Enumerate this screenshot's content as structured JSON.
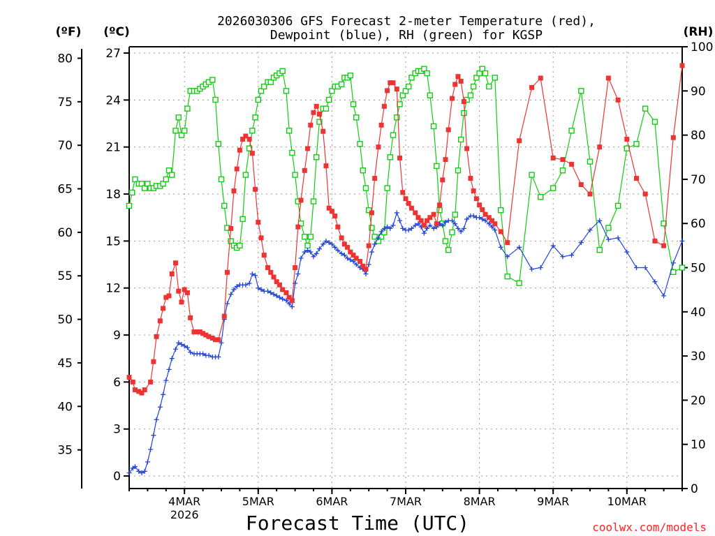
{
  "chart_data": {
    "type": "line",
    "title_line1": "2026030306 GFS Forecast 2-meter Temperature (red),",
    "title_line2": "Dewpoint (blue), RH (green) for KGSP",
    "xlabel": "Forecast Time (UTC)",
    "credit": "coolwx.com/models",
    "units": {
      "fahrenheit": "(ºF)",
      "celsius": "(ºC)",
      "rh": "(RH)"
    },
    "colors": {
      "temperature": "#ee3333",
      "dewpoint": "#2244dd",
      "rh": "#11cc11"
    },
    "xlim": [
      -0.75,
      6.75
    ],
    "ylim_c": [
      -0.8,
      27.4
    ],
    "ylim_rh": [
      0,
      100
    ],
    "y_ticks_c": [
      0,
      3,
      6,
      9,
      12,
      15,
      18,
      21,
      24,
      27
    ],
    "y_ticks_f": [
      35,
      40,
      45,
      50,
      55,
      60,
      65,
      70,
      75,
      80
    ],
    "y_ticks_rh": [
      0,
      10,
      20,
      30,
      40,
      50,
      60,
      70,
      80,
      90,
      100
    ],
    "x_ticks": [
      {
        "label": "4MAR",
        "sub": "2026",
        "x": 0
      },
      {
        "label": "5MAR",
        "sub": "",
        "x": 1
      },
      {
        "label": "6MAR",
        "sub": "",
        "x": 2
      },
      {
        "label": "7MAR",
        "sub": "",
        "x": 3
      },
      {
        "label": "8MAR",
        "sub": "",
        "x": 4
      },
      {
        "label": "9MAR",
        "sub": "",
        "x": 5
      },
      {
        "label": "10MAR",
        "sub": "",
        "x": 6
      }
    ],
    "temperature_c": [
      [
        -0.75,
        6.3
      ],
      [
        -0.7,
        6.0
      ],
      [
        -0.67,
        5.5
      ],
      [
        -0.62,
        5.4
      ],
      [
        -0.58,
        5.3
      ],
      [
        -0.54,
        5.5
      ],
      [
        -0.46,
        6.0
      ],
      [
        -0.42,
        7.3
      ],
      [
        -0.38,
        8.9
      ],
      [
        -0.33,
        9.9
      ],
      [
        -0.29,
        10.7
      ],
      [
        -0.25,
        11.4
      ],
      [
        -0.21,
        11.5
      ],
      [
        -0.17,
        12.9
      ],
      [
        -0.12,
        13.6
      ],
      [
        -0.08,
        11.8
      ],
      [
        -0.04,
        11.1
      ],
      [
        0.0,
        11.9
      ],
      [
        0.04,
        11.7
      ],
      [
        0.08,
        10.1
      ],
      [
        0.13,
        9.2
      ],
      [
        0.17,
        9.2
      ],
      [
        0.21,
        9.2
      ],
      [
        0.25,
        9.1
      ],
      [
        0.29,
        9.0
      ],
      [
        0.33,
        8.9
      ],
      [
        0.38,
        8.8
      ],
      [
        0.42,
        8.7
      ],
      [
        0.46,
        8.7
      ],
      [
        0.54,
        10.2
      ],
      [
        0.58,
        13.0
      ],
      [
        0.63,
        15.8
      ],
      [
        0.67,
        18.2
      ],
      [
        0.71,
        19.6
      ],
      [
        0.75,
        20.8
      ],
      [
        0.79,
        21.5
      ],
      [
        0.83,
        21.7
      ],
      [
        0.88,
        21.5
      ],
      [
        0.92,
        20.6
      ],
      [
        0.96,
        18.3
      ],
      [
        1.0,
        16.2
      ],
      [
        1.04,
        15.2
      ],
      [
        1.08,
        14.1
      ],
      [
        1.13,
        13.3
      ],
      [
        1.17,
        13.0
      ],
      [
        1.21,
        12.7
      ],
      [
        1.25,
        12.4
      ],
      [
        1.29,
        12.2
      ],
      [
        1.33,
        11.9
      ],
      [
        1.38,
        11.7
      ],
      [
        1.42,
        11.4
      ],
      [
        1.46,
        11.2
      ],
      [
        1.5,
        13.3
      ],
      [
        1.54,
        15.9
      ],
      [
        1.58,
        17.6
      ],
      [
        1.63,
        19.5
      ],
      [
        1.67,
        20.9
      ],
      [
        1.71,
        22.4
      ],
      [
        1.75,
        23.2
      ],
      [
        1.79,
        23.6
      ],
      [
        1.83,
        23.1
      ],
      [
        1.88,
        22.0
      ],
      [
        1.92,
        19.8
      ],
      [
        1.96,
        17.1
      ],
      [
        2.0,
        16.9
      ],
      [
        2.04,
        16.6
      ],
      [
        2.08,
        15.9
      ],
      [
        2.13,
        15.2
      ],
      [
        2.17,
        14.8
      ],
      [
        2.21,
        14.6
      ],
      [
        2.25,
        14.3
      ],
      [
        2.29,
        14.1
      ],
      [
        2.33,
        13.9
      ],
      [
        2.38,
        13.7
      ],
      [
        2.42,
        13.4
      ],
      [
        2.46,
        13.2
      ],
      [
        2.5,
        14.7
      ],
      [
        2.54,
        16.8
      ],
      [
        2.58,
        19.0
      ],
      [
        2.63,
        21.0
      ],
      [
        2.67,
        22.4
      ],
      [
        2.71,
        23.6
      ],
      [
        2.75,
        24.6
      ],
      [
        2.79,
        25.1
      ],
      [
        2.83,
        25.1
      ],
      [
        2.88,
        24.7
      ],
      [
        2.92,
        20.3
      ],
      [
        2.96,
        18.1
      ],
      [
        3.0,
        17.7
      ],
      [
        3.04,
        17.4
      ],
      [
        3.08,
        17.1
      ],
      [
        3.13,
        16.8
      ],
      [
        3.17,
        16.5
      ],
      [
        3.21,
        16.3
      ],
      [
        3.25,
        16.0
      ],
      [
        3.29,
        16.3
      ],
      [
        3.33,
        16.5
      ],
      [
        3.38,
        16.7
      ],
      [
        3.42,
        16.1
      ],
      [
        3.46,
        17.3
      ],
      [
        3.5,
        18.9
      ],
      [
        3.54,
        20.2
      ],
      [
        3.58,
        22.1
      ],
      [
        3.63,
        24.1
      ],
      [
        3.67,
        25.0
      ],
      [
        3.71,
        25.5
      ],
      [
        3.75,
        25.2
      ],
      [
        3.79,
        23.9
      ],
      [
        3.83,
        20.9
      ],
      [
        3.88,
        19.0
      ],
      [
        3.92,
        18.2
      ],
      [
        3.96,
        17.7
      ],
      [
        4.0,
        17.3
      ],
      [
        4.04,
        17.0
      ],
      [
        4.08,
        16.7
      ],
      [
        4.13,
        16.5
      ],
      [
        4.17,
        16.3
      ],
      [
        4.21,
        16.1
      ],
      [
        4.29,
        15.6
      ],
      [
        4.38,
        14.9
      ],
      [
        4.54,
        21.4
      ],
      [
        4.71,
        24.8
      ],
      [
        4.83,
        25.4
      ],
      [
        5.0,
        20.3
      ],
      [
        5.13,
        20.2
      ],
      [
        5.25,
        19.9
      ],
      [
        5.38,
        18.6
      ],
      [
        5.5,
        18.0
      ],
      [
        5.63,
        21.0
      ],
      [
        5.75,
        25.4
      ],
      [
        5.88,
        24.0
      ],
      [
        6.0,
        21.5
      ],
      [
        6.13,
        19.0
      ],
      [
        6.25,
        18.0
      ],
      [
        6.38,
        15.0
      ],
      [
        6.5,
        14.7
      ],
      [
        6.63,
        21.6
      ],
      [
        6.75,
        26.2
      ]
    ],
    "dewpoint_c": [
      [
        -0.75,
        0.2
      ],
      [
        -0.7,
        0.5
      ],
      [
        -0.67,
        0.6
      ],
      [
        -0.62,
        0.3
      ],
      [
        -0.58,
        0.2
      ],
      [
        -0.54,
        0.3
      ],
      [
        -0.5,
        0.9
      ],
      [
        -0.46,
        1.7
      ],
      [
        -0.42,
        2.6
      ],
      [
        -0.38,
        3.6
      ],
      [
        -0.33,
        4.4
      ],
      [
        -0.29,
        5.2
      ],
      [
        -0.25,
        6.1
      ],
      [
        -0.21,
        6.8
      ],
      [
        -0.17,
        7.5
      ],
      [
        -0.12,
        8.1
      ],
      [
        -0.08,
        8.5
      ],
      [
        -0.04,
        8.4
      ],
      [
        0.0,
        8.3
      ],
      [
        0.04,
        8.2
      ],
      [
        0.08,
        7.9
      ],
      [
        0.13,
        7.8
      ],
      [
        0.17,
        7.8
      ],
      [
        0.21,
        7.8
      ],
      [
        0.25,
        7.8
      ],
      [
        0.29,
        7.7
      ],
      [
        0.33,
        7.7
      ],
      [
        0.38,
        7.6
      ],
      [
        0.42,
        7.6
      ],
      [
        0.46,
        7.6
      ],
      [
        0.5,
        8.5
      ],
      [
        0.54,
        10.0
      ],
      [
        0.58,
        11.0
      ],
      [
        0.63,
        11.6
      ],
      [
        0.67,
        11.9
      ],
      [
        0.71,
        12.1
      ],
      [
        0.75,
        12.2
      ],
      [
        0.79,
        12.2
      ],
      [
        0.83,
        12.2
      ],
      [
        0.88,
        12.3
      ],
      [
        0.92,
        12.9
      ],
      [
        0.96,
        12.8
      ],
      [
        1.0,
        12.0
      ],
      [
        1.04,
        11.9
      ],
      [
        1.08,
        11.8
      ],
      [
        1.13,
        11.8
      ],
      [
        1.17,
        11.7
      ],
      [
        1.21,
        11.6
      ],
      [
        1.25,
        11.5
      ],
      [
        1.29,
        11.4
      ],
      [
        1.33,
        11.3
      ],
      [
        1.38,
        11.2
      ],
      [
        1.42,
        11.0
      ],
      [
        1.46,
        10.8
      ],
      [
        1.5,
        12.3
      ],
      [
        1.54,
        12.9
      ],
      [
        1.58,
        13.9
      ],
      [
        1.63,
        14.3
      ],
      [
        1.67,
        14.4
      ],
      [
        1.71,
        14.3
      ],
      [
        1.75,
        14.0
      ],
      [
        1.79,
        14.2
      ],
      [
        1.83,
        14.5
      ],
      [
        1.88,
        14.8
      ],
      [
        1.92,
        15.0
      ],
      [
        1.96,
        14.9
      ],
      [
        2.0,
        14.8
      ],
      [
        2.04,
        14.6
      ],
      [
        2.08,
        14.4
      ],
      [
        2.13,
        14.2
      ],
      [
        2.17,
        14.1
      ],
      [
        2.21,
        13.9
      ],
      [
        2.25,
        13.8
      ],
      [
        2.29,
        13.7
      ],
      [
        2.33,
        13.5
      ],
      [
        2.38,
        13.3
      ],
      [
        2.42,
        13.2
      ],
      [
        2.46,
        12.9
      ],
      [
        2.5,
        13.5
      ],
      [
        2.54,
        14.3
      ],
      [
        2.58,
        14.8
      ],
      [
        2.63,
        15.2
      ],
      [
        2.67,
        15.6
      ],
      [
        2.71,
        15.8
      ],
      [
        2.75,
        15.9
      ],
      [
        2.79,
        15.8
      ],
      [
        2.83,
        16.0
      ],
      [
        2.88,
        16.8
      ],
      [
        2.92,
        16.3
      ],
      [
        2.96,
        15.8
      ],
      [
        3.0,
        15.7
      ],
      [
        3.04,
        15.7
      ],
      [
        3.08,
        15.8
      ],
      [
        3.13,
        16.0
      ],
      [
        3.17,
        16.1
      ],
      [
        3.21,
        15.9
      ],
      [
        3.25,
        15.5
      ],
      [
        3.29,
        15.8
      ],
      [
        3.33,
        16.0
      ],
      [
        3.38,
        15.8
      ],
      [
        3.42,
        15.9
      ],
      [
        3.46,
        16.1
      ],
      [
        3.5,
        16.0
      ],
      [
        3.54,
        16.2
      ],
      [
        3.58,
        16.3
      ],
      [
        3.63,
        16.3
      ],
      [
        3.67,
        16.1
      ],
      [
        3.71,
        15.8
      ],
      [
        3.75,
        15.6
      ],
      [
        3.79,
        15.8
      ],
      [
        3.83,
        16.4
      ],
      [
        3.88,
        16.6
      ],
      [
        3.92,
        16.6
      ],
      [
        3.96,
        16.5
      ],
      [
        4.0,
        16.5
      ],
      [
        4.04,
        16.4
      ],
      [
        4.08,
        16.3
      ],
      [
        4.13,
        16.1
      ],
      [
        4.17,
        15.9
      ],
      [
        4.21,
        15.7
      ],
      [
        4.29,
        14.6
      ],
      [
        4.38,
        14.0
      ],
      [
        4.54,
        14.6
      ],
      [
        4.71,
        13.2
      ],
      [
        4.83,
        13.3
      ],
      [
        5.0,
        14.7
      ],
      [
        5.13,
        14.0
      ],
      [
        5.25,
        14.1
      ],
      [
        5.38,
        14.9
      ],
      [
        5.5,
        15.7
      ],
      [
        5.63,
        16.3
      ],
      [
        5.75,
        15.1
      ],
      [
        5.88,
        15.2
      ],
      [
        6.0,
        14.3
      ],
      [
        6.13,
        13.3
      ],
      [
        6.25,
        13.3
      ],
      [
        6.38,
        12.4
      ],
      [
        6.5,
        11.5
      ],
      [
        6.63,
        13.6
      ],
      [
        6.75,
        15.0
      ]
    ],
    "rh_pct": [
      [
        -0.75,
        64
      ],
      [
        -0.71,
        67
      ],
      [
        -0.67,
        70
      ],
      [
        -0.62,
        69
      ],
      [
        -0.58,
        69
      ],
      [
        -0.54,
        68
      ],
      [
        -0.5,
        69
      ],
      [
        -0.46,
        68
      ],
      [
        -0.42,
        68
      ],
      [
        -0.38,
        68.5
      ],
      [
        -0.33,
        68.5
      ],
      [
        -0.29,
        69
      ],
      [
        -0.25,
        70
      ],
      [
        -0.21,
        72
      ],
      [
        -0.17,
        71
      ],
      [
        -0.12,
        81
      ],
      [
        -0.08,
        84
      ],
      [
        -0.04,
        80
      ],
      [
        0.0,
        81
      ],
      [
        0.04,
        86
      ],
      [
        0.08,
        90
      ],
      [
        0.13,
        90
      ],
      [
        0.17,
        90
      ],
      [
        0.21,
        90.5
      ],
      [
        0.25,
        91
      ],
      [
        0.29,
        91.5
      ],
      [
        0.33,
        92
      ],
      [
        0.38,
        92.5
      ],
      [
        0.42,
        88
      ],
      [
        0.46,
        78
      ],
      [
        0.5,
        70
      ],
      [
        0.54,
        64
      ],
      [
        0.58,
        59
      ],
      [
        0.63,
        56
      ],
      [
        0.67,
        55
      ],
      [
        0.71,
        54.5
      ],
      [
        0.75,
        55
      ],
      [
        0.79,
        61
      ],
      [
        0.83,
        71
      ],
      [
        0.88,
        77
      ],
      [
        0.92,
        81
      ],
      [
        0.96,
        84
      ],
      [
        1.0,
        88
      ],
      [
        1.04,
        90
      ],
      [
        1.08,
        91
      ],
      [
        1.13,
        92
      ],
      [
        1.17,
        92
      ],
      [
        1.21,
        93
      ],
      [
        1.25,
        93.5
      ],
      [
        1.29,
        94
      ],
      [
        1.33,
        94.5
      ],
      [
        1.38,
        90
      ],
      [
        1.42,
        81
      ],
      [
        1.46,
        76
      ],
      [
        1.5,
        71
      ],
      [
        1.54,
        65
      ],
      [
        1.58,
        60
      ],
      [
        1.63,
        57
      ],
      [
        1.67,
        55
      ],
      [
        1.71,
        57
      ],
      [
        1.75,
        65
      ],
      [
        1.79,
        75
      ],
      [
        1.83,
        83
      ],
      [
        1.88,
        86
      ],
      [
        1.92,
        86
      ],
      [
        1.96,
        88
      ],
      [
        2.0,
        90
      ],
      [
        2.04,
        91
      ],
      [
        2.08,
        91
      ],
      [
        2.13,
        91.5
      ],
      [
        2.17,
        93
      ],
      [
        2.21,
        93
      ],
      [
        2.25,
        93.5
      ],
      [
        2.29,
        87
      ],
      [
        2.33,
        84
      ],
      [
        2.38,
        78
      ],
      [
        2.42,
        72
      ],
      [
        2.46,
        68
      ],
      [
        2.5,
        63
      ],
      [
        2.54,
        59
      ],
      [
        2.58,
        57
      ],
      [
        2.63,
        56
      ],
      [
        2.67,
        57
      ],
      [
        2.71,
        58
      ],
      [
        2.75,
        68
      ],
      [
        2.79,
        75
      ],
      [
        2.83,
        80
      ],
      [
        2.88,
        84
      ],
      [
        2.92,
        87
      ],
      [
        2.96,
        89
      ],
      [
        3.0,
        90
      ],
      [
        3.04,
        91
      ],
      [
        3.08,
        93
      ],
      [
        3.13,
        94
      ],
      [
        3.17,
        94.5
      ],
      [
        3.21,
        94.5
      ],
      [
        3.25,
        95
      ],
      [
        3.29,
        94
      ],
      [
        3.33,
        89
      ],
      [
        3.38,
        82
      ],
      [
        3.42,
        73
      ],
      [
        3.46,
        63
      ],
      [
        3.5,
        60
      ],
      [
        3.54,
        56
      ],
      [
        3.58,
        54
      ],
      [
        3.63,
        58
      ],
      [
        3.67,
        62
      ],
      [
        3.71,
        72
      ],
      [
        3.75,
        79
      ],
      [
        3.79,
        85
      ],
      [
        3.83,
        88
      ],
      [
        3.88,
        89
      ],
      [
        3.92,
        91
      ],
      [
        3.96,
        93
      ],
      [
        4.0,
        94
      ],
      [
        4.04,
        95
      ],
      [
        4.08,
        94
      ],
      [
        4.13,
        91
      ],
      [
        4.21,
        93
      ],
      [
        4.29,
        63
      ],
      [
        4.38,
        48
      ],
      [
        4.54,
        46.5
      ],
      [
        4.71,
        71
      ],
      [
        4.83,
        66
      ],
      [
        5.0,
        68
      ],
      [
        5.13,
        72
      ],
      [
        5.25,
        81
      ],
      [
        5.38,
        90
      ],
      [
        5.5,
        74
      ],
      [
        5.63,
        54
      ],
      [
        5.75,
        59
      ],
      [
        5.88,
        64
      ],
      [
        6.0,
        77
      ],
      [
        6.13,
        78
      ],
      [
        6.25,
        86
      ],
      [
        6.38,
        83
      ],
      [
        6.5,
        60
      ],
      [
        6.63,
        49
      ],
      [
        6.75,
        50
      ]
    ]
  }
}
